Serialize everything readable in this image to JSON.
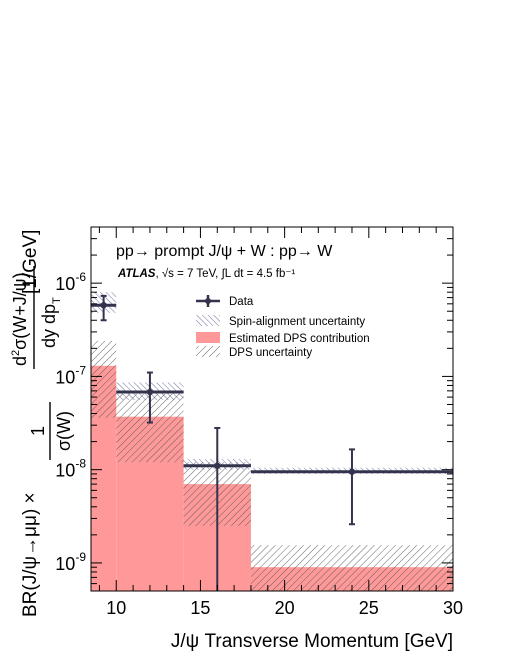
{
  "chart_data": {
    "type": "bar",
    "title": "pp→ prompt J/ψ + W : pp→ W",
    "subtitle": "ATLAS, √s = 7 TeV, ∫L dt = 4.5 fb⁻¹",
    "subtitle_bold": "ATLAS",
    "subtitle_rest": ", √s = 7 TeV, ∫L dt = 4.5 fb⁻¹",
    "xlabel": "J/ψ Transverse Momentum [GeV]",
    "ylabel": "BR(J/ψ→μμ) × (1/σ(W)) d²σ(W+J/ψ)/dy dp_T [1/GeV]",
    "xlim": [
      8.5,
      30
    ],
    "ylim": [
      5e-10,
      4e-06
    ],
    "y_scale": "log",
    "x_ticks": [
      10,
      15,
      20,
      25,
      30
    ],
    "x_tick_labels": [
      "10",
      "15",
      "20",
      "25",
      "30"
    ],
    "y_ticks": [
      1e-09,
      1e-08,
      1e-07,
      1e-06
    ],
    "y_tick_labels": [
      "10",
      "10",
      "10",
      "10"
    ],
    "y_tick_exponents": [
      "-9",
      "-8",
      "-7",
      "-6"
    ],
    "bins": [
      [
        8.5,
        10
      ],
      [
        10,
        14
      ],
      [
        14,
        18
      ],
      [
        18,
        30
      ]
    ],
    "series": [
      {
        "name": "Data",
        "x": [
          9.25,
          12,
          16,
          24
        ],
        "y": [
          5.8e-07,
          6.8e-08,
          1.1e-08,
          9.5e-09
        ],
        "yerr_low": [
          4e-07,
          3.2e-08,
          5e-10,
          2.6e-09
        ],
        "yerr_high": [
          7.3e-07,
          1.1e-07,
          2.8e-08,
          1.65e-08
        ]
      },
      {
        "name": "Spin-alignment uncertainty",
        "low": [
          4.8e-07,
          5.6e-08,
          1e-08,
          9e-09
        ],
        "high": [
          8e-07,
          8.6e-08,
          1.3e-08,
          1.05e-08
        ]
      },
      {
        "name": "Estimated DPS contribution",
        "values": [
          1.3e-07,
          3.7e-08,
          7e-09,
          9e-10
        ]
      },
      {
        "name": "DPS uncertainty",
        "low": [
          3.6e-08,
          1.2e-08,
          2.5e-09,
          5e-10
        ],
        "high": [
          2.4e-07,
          6.5e-08,
          1.2e-08,
          1.55e-09
        ]
      }
    ],
    "legend": [
      {
        "label": "Data",
        "style": "marker"
      },
      {
        "label": "Spin-alignment uncertainty",
        "style": "hatch-blue"
      },
      {
        "label": "Estimated DPS contribution",
        "style": "fill"
      },
      {
        "label": "DPS uncertainty",
        "style": "hatch-gray"
      }
    ],
    "legend_position": "top-right",
    "grid": false,
    "colors": {
      "data": "#33334d",
      "dps_fill": "#ff9999",
      "spin_hatch": "#6e6ea0",
      "dps_hatch": "#555555",
      "axis": "#000000"
    }
  }
}
